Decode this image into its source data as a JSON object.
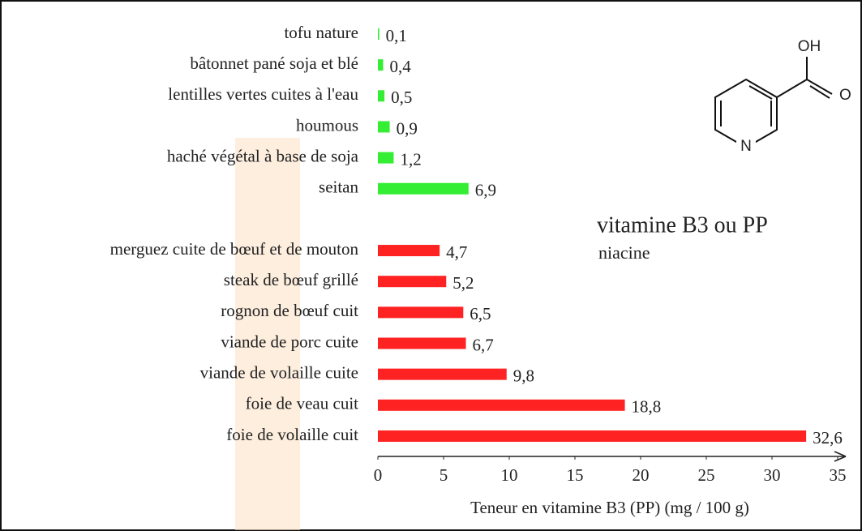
{
  "chart_data": {
    "type": "barh",
    "title": "vitamine B3 ou PP",
    "subtitle": "niacine",
    "x_label": "Teneur en vitamine B3 (PP) (mg / 100 g)",
    "categories": [
      "tofu nature",
      "bâtonnet pané soja et blé",
      "lentilles vertes cuites à l'eau",
      "houmous",
      "haché végétal à base de soja",
      "seitan",
      null,
      "merguez cuite de bœuf et de mouton",
      "steak de bœuf grillé",
      "rognon de bœuf cuit",
      "viande de porc cuite",
      "viande de volaille cuite",
      "foie de veau cuit",
      "foie de volaille cuit"
    ],
    "values": [
      0.1,
      0.4,
      0.5,
      0.9,
      1.2,
      6.9,
      null,
      4.7,
      5.2,
      6.5,
      6.7,
      9.8,
      18.8,
      32.6
    ],
    "value_labels": [
      "0,1",
      "0,4",
      "0,5",
      "0,9",
      "1,2",
      "6,9",
      null,
      "4,7",
      "5,2",
      "6,5",
      "6,7",
      "9,8",
      "18,8",
      "32,6"
    ],
    "colors": [
      "#33ee33",
      "#33ee33",
      "#33ee33",
      "#33ee33",
      "#33ee33",
      "#33ee33",
      null,
      "#ff2222",
      "#ff2222",
      "#ff2222",
      "#ff2222",
      "#ff2222",
      "#ff2222",
      "#ff2222"
    ],
    "xlim": [
      0,
      35
    ],
    "xticks": [
      0,
      5,
      10,
      15,
      20,
      25,
      30,
      35
    ],
    "molecule": {
      "hydroxyl": "OH",
      "nitrogen": "N"
    }
  }
}
